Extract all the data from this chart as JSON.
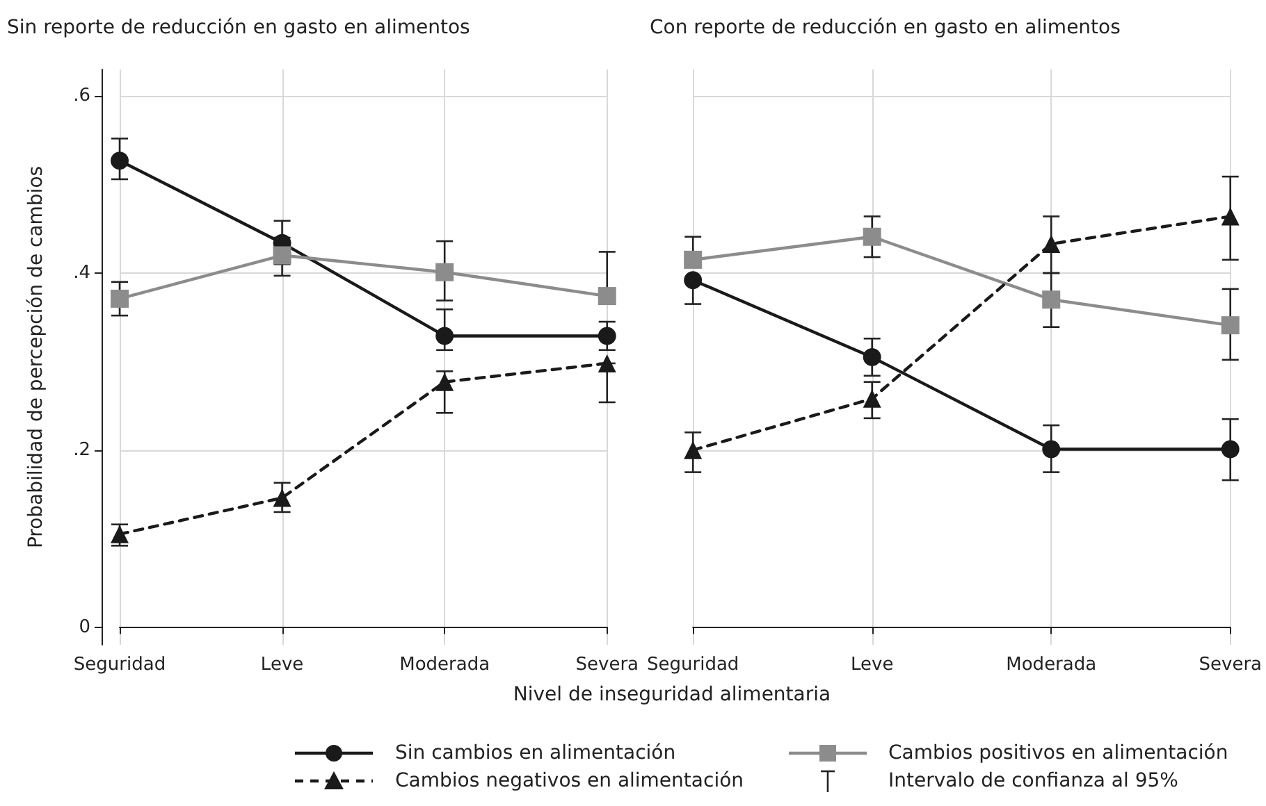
{
  "chart_data": [
    {
      "type": "line",
      "title": "Sin reporte de reducción en gasto en alimentos",
      "ylabel": "Probabilidad de percepción de cambios",
      "xlabel": "Nivel de inseguridad alimentaria",
      "categories": [
        "Seguridad",
        "Leve",
        "Moderada",
        "Severa"
      ],
      "series": [
        {
          "name": "Sin cambios en alimentación",
          "color": "#1a1a1a",
          "marker": "circle",
          "line_style": "solid",
          "values": [
            0.527,
            0.434,
            0.329,
            0.329
          ],
          "errors": [
            [
              0.506,
              0.552
            ],
            [
              0.41,
              0.459
            ],
            [
              0.313,
              0.359
            ],
            [
              0.313,
              0.345
            ]
          ]
        },
        {
          "name": "Cambios positivos en alimentación",
          "color": "#8c8c8c",
          "marker": "square",
          "line_style": "solid",
          "values": [
            0.371,
            0.42,
            0.401,
            0.374
          ],
          "errors": [
            [
              0.352,
              0.39
            ],
            [
              0.397,
              0.44
            ],
            [
              0.369,
              0.436
            ],
            [
              0.374,
              0.424
            ]
          ]
        },
        {
          "name": "Cambios negativos en alimentación",
          "color": "#1a1a1a",
          "marker": "triangle",
          "line_style": "dashed",
          "values": [
            0.105,
            0.146,
            0.277,
            0.298
          ],
          "errors": [
            [
              0.092,
              0.116
            ],
            [
              0.13,
              0.163
            ],
            [
              0.242,
              0.289
            ],
            [
              0.254,
              0.298
            ]
          ]
        }
      ],
      "ylim": [
        -0.02,
        0.63
      ],
      "yticks": [
        {
          "value": 0,
          "label": "0"
        },
        {
          "value": 0.2,
          "label": ".2"
        },
        {
          "value": 0.4,
          "label": ".4"
        },
        {
          "value": 0.6,
          "label": ".6"
        }
      ],
      "grid": true,
      "legend": "bottom",
      "annotations": [
        "Intervalo de confianza al 95%"
      ]
    },
    {
      "type": "line",
      "title": "Con reporte de reducción en gasto en alimentos",
      "categories": [
        "Seguridad",
        "Leve",
        "Moderada",
        "Severa"
      ],
      "series": [
        {
          "color": "#1a1a1a",
          "marker": "circle",
          "line_style": "solid",
          "values": [
            0.392,
            0.305,
            0.201,
            0.201
          ],
          "errors": [
            [
              0.365,
              0.392
            ],
            [
              0.284,
              0.326
            ],
            [
              0.175,
              0.228
            ],
            [
              0.166,
              0.235
            ]
          ]
        },
        {
          "color": "#8c8c8c",
          "marker": "square",
          "line_style": "solid",
          "values": [
            0.415,
            0.441,
            0.37,
            0.341
          ],
          "errors": [
            [
              0.415,
              0.441
            ],
            [
              0.418,
              0.464
            ],
            [
              0.339,
              0.4
            ],
            [
              0.302,
              0.382
            ]
          ]
        },
        {
          "color": "#1a1a1a",
          "marker": "triangle",
          "line_style": "dashed",
          "values": [
            0.2,
            0.258,
            0.433,
            0.464
          ],
          "errors": [
            [
              0.175,
              0.22
            ],
            [
              0.236,
              0.277
            ],
            [
              0.4,
              0.464
            ],
            [
              0.415,
              0.509
            ]
          ]
        }
      ],
      "ylim": [
        -0.02,
        0.63
      ],
      "yticks": [
        0,
        0.2,
        0.4,
        0.6
      ],
      "grid": true,
      "tick_labels": "x"
    }
  ]
}
